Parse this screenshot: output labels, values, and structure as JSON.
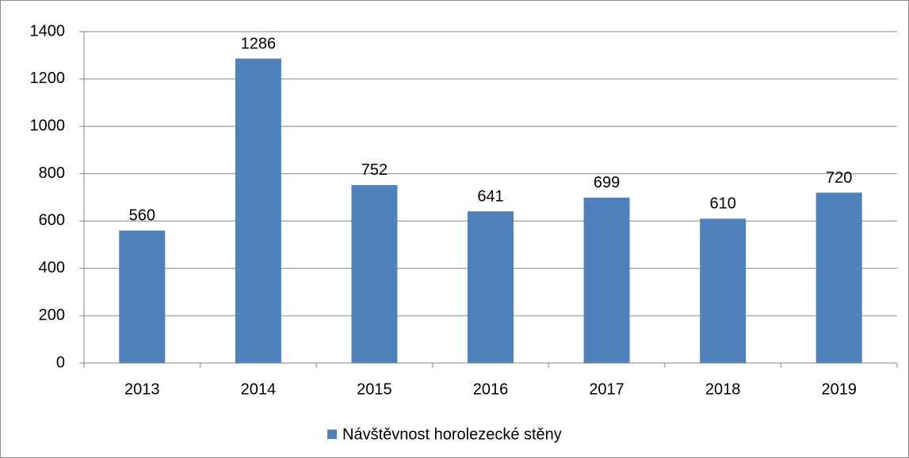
{
  "chart_data": {
    "type": "bar",
    "categories": [
      "2013",
      "2014",
      "2015",
      "2016",
      "2017",
      "2018",
      "2019"
    ],
    "series": [
      {
        "name": "Návštěvnost horolezecké stěny",
        "color": "#4f81bd",
        "values": [
          560,
          1286,
          752,
          641,
          699,
          610,
          720
        ]
      }
    ],
    "ylim": [
      0,
      1400
    ],
    "yticks": [
      0,
      200,
      400,
      600,
      800,
      1000,
      1200,
      1400
    ],
    "grid": true,
    "legend": "bottom",
    "data_labels": true
  }
}
